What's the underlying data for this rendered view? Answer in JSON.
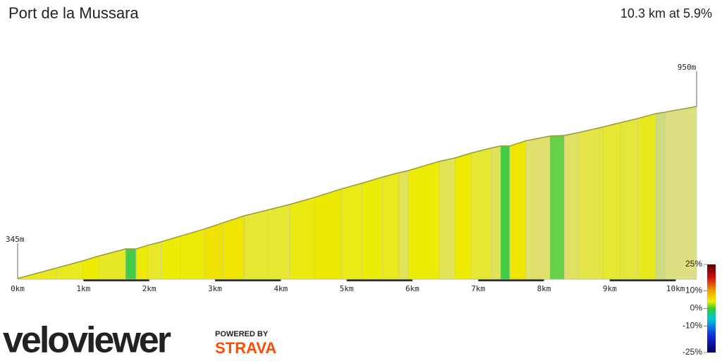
{
  "chart_data": {
    "type": "profile",
    "title": "Port de la Mussara",
    "subtitle": "10.3 km at 5.9%",
    "x": [
      0,
      0.59,
      0.99,
      1.23,
      1.64,
      1.8,
      1.98,
      2.18,
      2.47,
      2.84,
      3.12,
      3.45,
      3.8,
      4.13,
      4.51,
      4.92,
      5.23,
      5.55,
      5.79,
      5.93,
      6.41,
      6.65,
      6.89,
      7.2,
      7.34,
      7.48,
      7.72,
      8.09,
      8.31,
      8.52,
      8.9,
      9.16,
      9.43,
      9.7,
      9.84,
      10.32
    ],
    "values": [
      345,
      382,
      407,
      424,
      449,
      449,
      462,
      474,
      494,
      519,
      541,
      566,
      586,
      605,
      630,
      660,
      680,
      702,
      717,
      724,
      757,
      769,
      786,
      804,
      811,
      811,
      829,
      846,
      848,
      858,
      878,
      893,
      908,
      925,
      930,
      950
    ],
    "xlim": [
      0,
      10.32
    ],
    "ylim": [
      345,
      950
    ],
    "xticks": [
      {
        "value": 0,
        "label": "0km"
      },
      {
        "value": 1,
        "label": "1km"
      },
      {
        "value": 2,
        "label": "2km"
      },
      {
        "value": 3,
        "label": "3km"
      },
      {
        "value": 4,
        "label": "4km"
      },
      {
        "value": 5,
        "label": "5km"
      },
      {
        "value": 6,
        "label": "6km"
      },
      {
        "value": 7,
        "label": "7km"
      },
      {
        "value": 8,
        "label": "8km"
      },
      {
        "value": 9,
        "label": "9km"
      },
      {
        "value": 10,
        "label": "10km"
      }
    ],
    "annotations": [
      {
        "value": 345,
        "label": "345m"
      },
      {
        "value": 950,
        "label": "950m"
      }
    ],
    "gradient_lim": [
      -25,
      25
    ],
    "gradient_ticks": [
      {
        "value": 25,
        "label": "25%"
      },
      {
        "value": 10,
        "label": "10%"
      },
      {
        "value": 0,
        "label": "0%"
      },
      {
        "value": -10,
        "label": "-10%"
      },
      {
        "value": -25,
        "label": "-25%"
      }
    ]
  },
  "branding": {
    "logo": "veloviewer",
    "powered": "POWERED BY",
    "strava": "STRAVA"
  }
}
